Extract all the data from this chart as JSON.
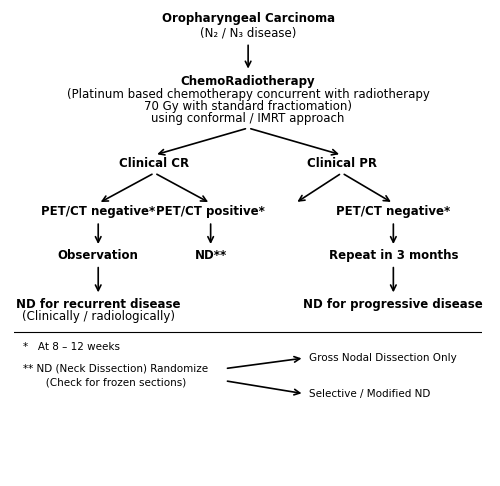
{
  "title_line1": "Oropharyngeal Carcinoma",
  "title_line2": "(N₂ / N₃ disease)",
  "chemo_line1": "ChemoRadiotherapy",
  "chemo_line2": "(Platinum based chemotherapy concurrent with radiotherapy",
  "chemo_line3": "70 Gy with standard fractiomation)",
  "chemo_line4": "using conformal / IMRT approach",
  "clinical_cr": "Clinical CR",
  "clinical_pr": "Clinical PR",
  "pet_neg1": "PET/CT negative*",
  "pet_pos": "PET/CT positive*",
  "pet_neg2": "PET/CT negative*",
  "observation": "Observation",
  "nd_double": "ND**",
  "repeat": "Repeat in 3 months",
  "nd_recurrent_line1": "ND for recurrent disease",
  "nd_recurrent_line2": "(Clinically / radiologically)",
  "nd_progressive": "ND for progressive disease",
  "footnote1": "*   At 8 – 12 weeks",
  "footnote2_line1": "** ND (Neck Dissection) Randomize",
  "footnote2_line2": "       (Check for frozen sections)",
  "gross": "Gross Nodal Dissection Only",
  "selective": "Selective / Modified ND",
  "bg_color": "#ffffff",
  "text_color": "#000000",
  "arrow_color": "#000000",
  "fontsize_main": 8.5,
  "fontsize_bold": 8.5,
  "fontsize_small": 7.5
}
